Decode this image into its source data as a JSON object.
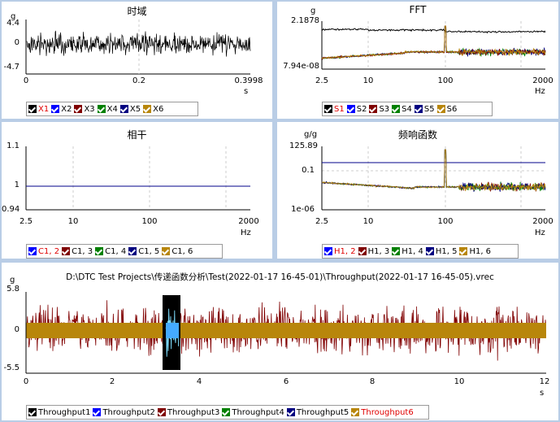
{
  "time": {
    "title": "时域",
    "unit_y": "g",
    "y_ticks": [
      "4.4",
      "0",
      "-4.7"
    ],
    "x_ticks": [
      "0",
      "0.2",
      "0.3998"
    ],
    "x_unit": "s",
    "legend": [
      "X1",
      "X2",
      "X3",
      "X4",
      "X5",
      "X6"
    ],
    "legend_colors": [
      "#000000",
      "#0000ff",
      "#800000",
      "#008000",
      "#000080",
      "#b8860b"
    ]
  },
  "fft": {
    "title": "FFT",
    "unit_y": "g",
    "y_ticks": [
      "2.1878",
      "7.94e-08"
    ],
    "x_ticks": [
      "2.5",
      "10",
      "100",
      "2000"
    ],
    "x_unit": "Hz",
    "legend": [
      "S1",
      "S2",
      "S3",
      "S4",
      "S5",
      "S6"
    ],
    "legend_colors": [
      "#000000",
      "#0000ff",
      "#800000",
      "#008000",
      "#000080",
      "#b8860b"
    ]
  },
  "coh": {
    "title": "相干",
    "y_ticks": [
      "1.1",
      "1",
      "0.94"
    ],
    "x_ticks": [
      "2.5",
      "10",
      "100",
      "2000"
    ],
    "x_unit": "Hz",
    "legend": [
      "C1, 2",
      "C1, 3",
      "C1, 4",
      "C1, 5",
      "C1, 6"
    ],
    "legend_colors": [
      "#0000ff",
      "#800000",
      "#008000",
      "#000080",
      "#b8860b"
    ]
  },
  "frf": {
    "title": "频响函数",
    "unit_y": "g/g",
    "y_ticks": [
      "125.89",
      "0.1",
      "1e-06"
    ],
    "x_ticks": [
      "2.5",
      "10",
      "100",
      "2000"
    ],
    "x_unit": "Hz",
    "legend": [
      "H1, 2",
      "H1, 3",
      "H1, 4",
      "H1, 5",
      "H1, 6"
    ],
    "legend_colors": [
      "#0000ff",
      "#800000",
      "#008000",
      "#000080",
      "#b8860b"
    ]
  },
  "throughput": {
    "title": "D:\\DTC Test Projects\\传递函数分析\\Test(2022-01-17 16-45-01)\\Throughput(2022-01-17 16-45-05).vrec",
    "unit_y": "g",
    "y_ticks": [
      "5.8",
      "0",
      "-5.5"
    ],
    "x_ticks": [
      "0",
      "2",
      "4",
      "6",
      "8",
      "10",
      "12"
    ],
    "x_unit": "s",
    "legend": [
      "Throughput1",
      "Throughput2",
      "Throughput3",
      "Throughput4",
      "Throughput5",
      "Throughput6"
    ],
    "legend_colors": [
      "#000000",
      "#0000ff",
      "#800000",
      "#008000",
      "#000080",
      "#b8860b"
    ]
  }
}
